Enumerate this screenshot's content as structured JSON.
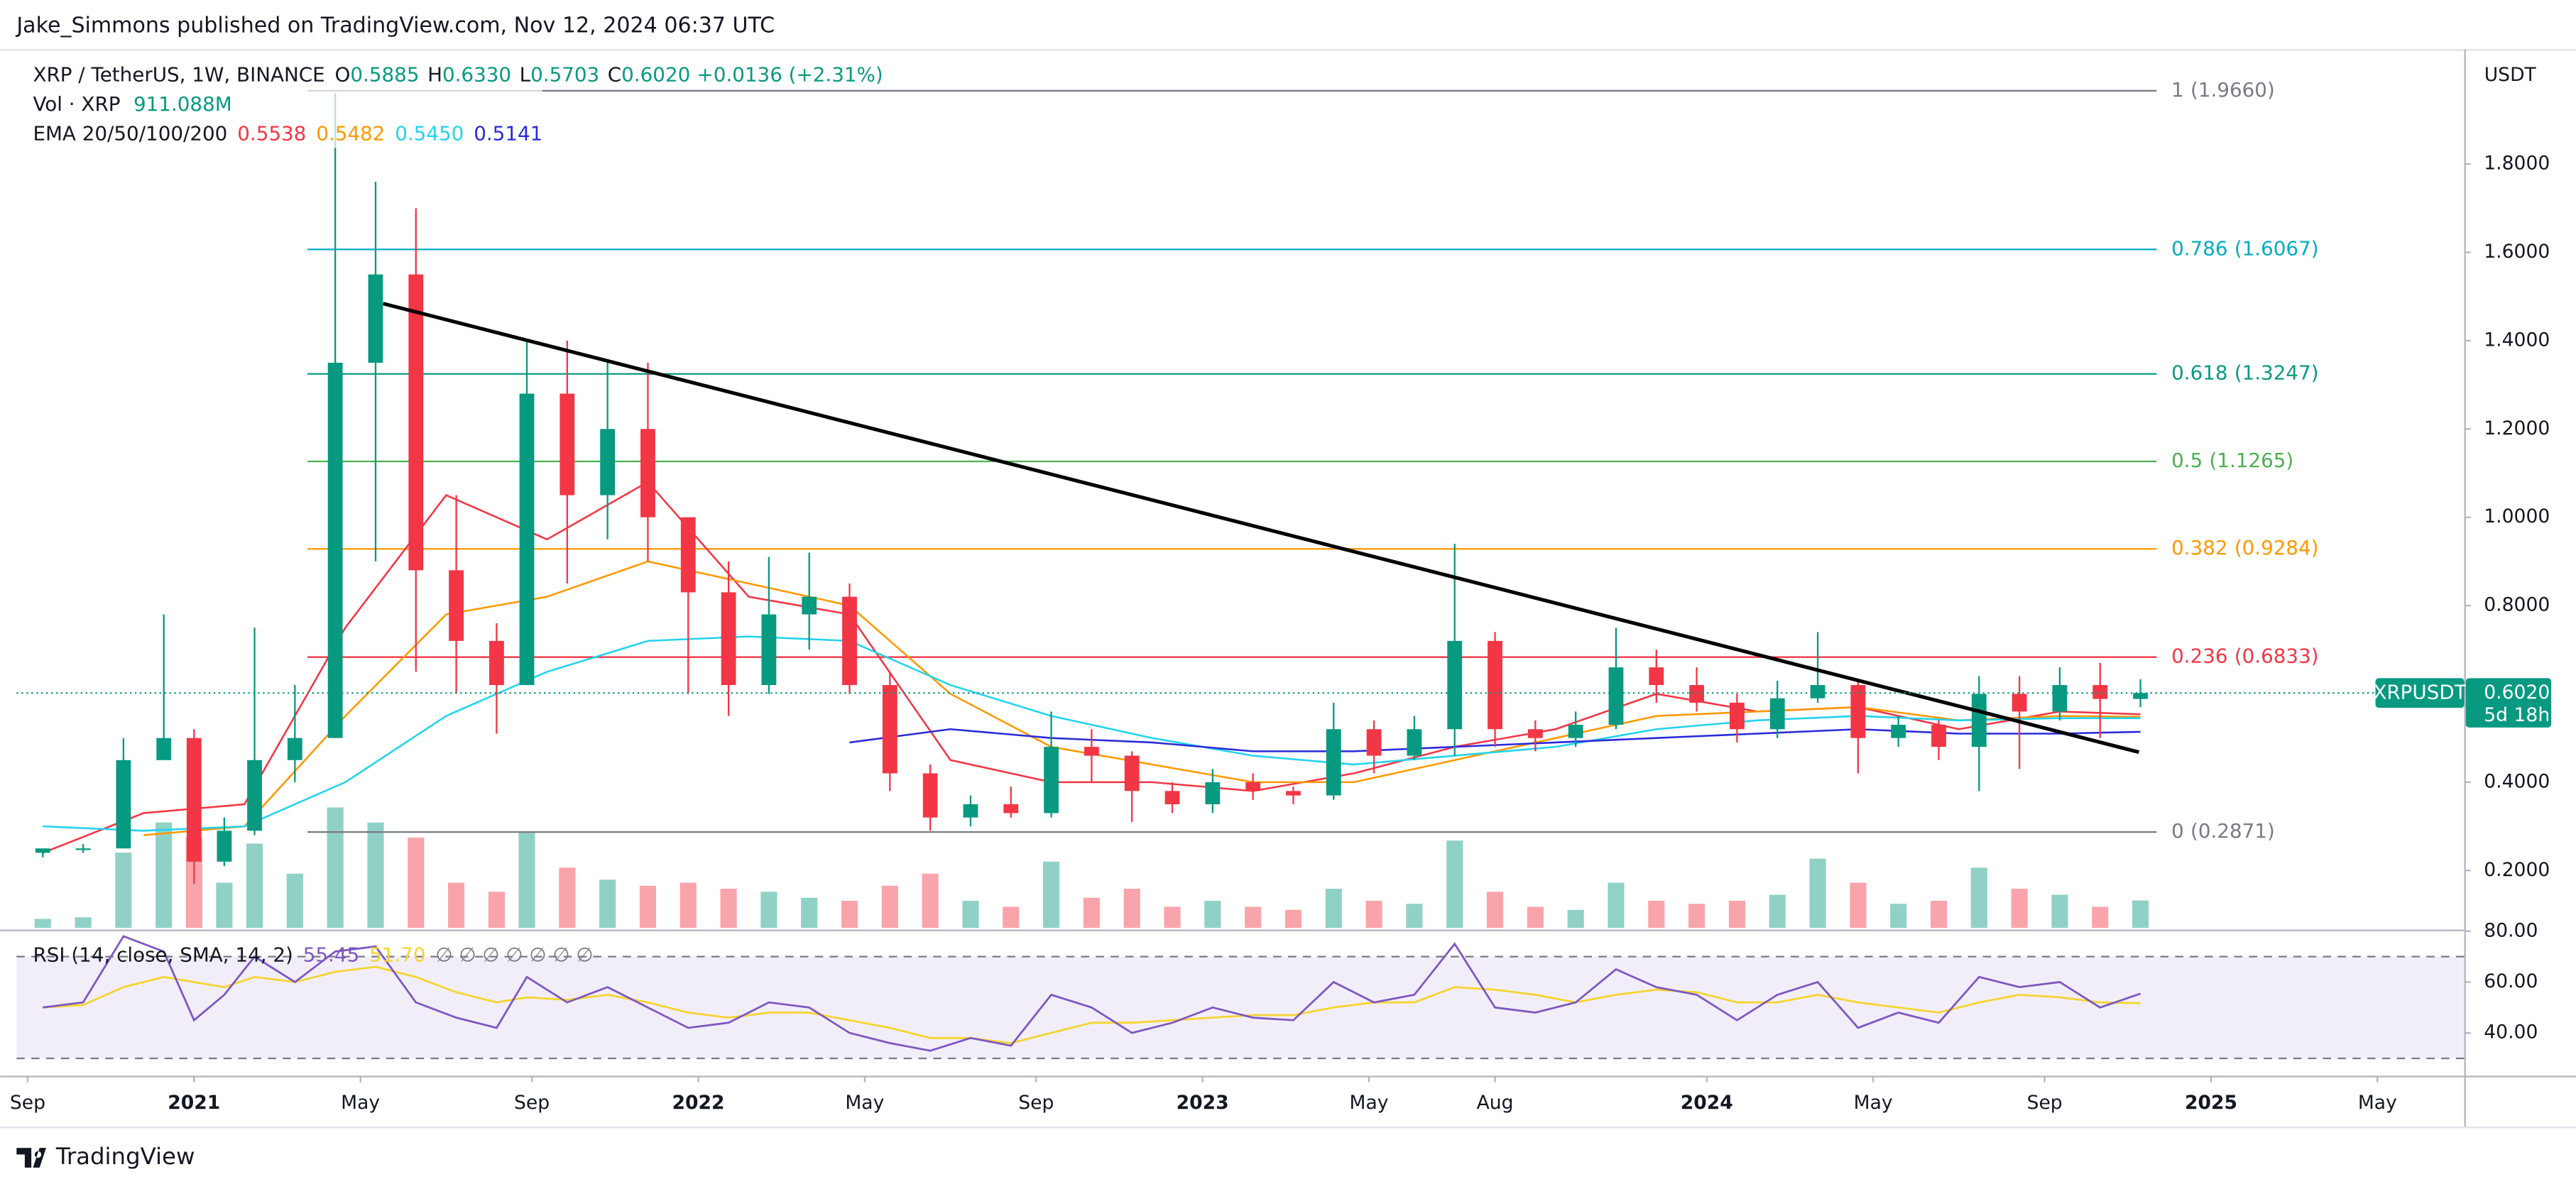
{
  "header": {
    "publisher": "Jake_Simmons published on TradingView.com, Nov 12, 2024 06:37 UTC"
  },
  "footer": {
    "brand": "TradingView"
  },
  "chart_data": {
    "type": "candlestick",
    "symbol": "XRP / TetherUS, 1W, BINANCE",
    "ohlc": [
      {
        "key": "O",
        "value": 0.5885
      },
      {
        "key": "H",
        "value": 0.633,
        "label": "0.6330"
      },
      {
        "key": "L",
        "value": 0.5703
      },
      {
        "key": "C",
        "value": 0.602,
        "label": "0.6020"
      }
    ],
    "change": "+0.0136 (+2.31%)",
    "up_color": "#089981",
    "down_color": "#f23645",
    "x": [
      2020.7,
      2020.78,
      2020.86,
      2020.94,
      2021.0,
      2021.06,
      2021.12,
      2021.2,
      2021.28,
      2021.36,
      2021.44,
      2021.52,
      2021.6,
      2021.66,
      2021.74,
      2021.82,
      2021.9,
      2021.98,
      2022.06,
      2022.14,
      2022.22,
      2022.3,
      2022.38,
      2022.46,
      2022.54,
      2022.62,
      2022.7,
      2022.78,
      2022.86,
      2022.94,
      2023.02,
      2023.1,
      2023.18,
      2023.26,
      2023.34,
      2023.42,
      2023.5,
      2023.58,
      2023.66,
      2023.74,
      2023.82,
      2023.9,
      2023.98,
      2024.06,
      2024.14,
      2024.22,
      2024.3,
      2024.38,
      2024.46,
      2024.54,
      2024.62,
      2024.7,
      2024.78,
      2024.86
    ],
    "open": [
      0.24,
      0.25,
      0.25,
      0.45,
      0.5,
      0.22,
      0.29,
      0.45,
      0.5,
      1.35,
      1.55,
      0.88,
      0.72,
      0.62,
      1.28,
      1.05,
      1.2,
      1.0,
      0.83,
      0.62,
      0.78,
      0.82,
      0.62,
      0.42,
      0.32,
      0.35,
      0.33,
      0.48,
      0.46,
      0.38,
      0.35,
      0.4,
      0.38,
      0.37,
      0.52,
      0.46,
      0.52,
      0.72,
      0.52,
      0.5,
      0.53,
      0.66,
      0.62,
      0.58,
      0.52,
      0.59,
      0.62,
      0.5,
      0.53,
      0.48,
      0.6,
      0.56,
      0.62,
      0.5885
    ],
    "high": [
      0.25,
      0.26,
      0.5,
      0.78,
      0.52,
      0.32,
      0.75,
      0.62,
      1.96,
      1.76,
      1.7,
      1.05,
      0.76,
      1.4,
      1.4,
      1.35,
      1.35,
      1.0,
      0.9,
      0.91,
      0.92,
      0.85,
      0.65,
      0.44,
      0.37,
      0.39,
      0.56,
      0.52,
      0.47,
      0.4,
      0.43,
      0.42,
      0.39,
      0.58,
      0.54,
      0.55,
      0.94,
      0.74,
      0.54,
      0.56,
      0.75,
      0.7,
      0.66,
      0.6,
      0.63,
      0.74,
      0.63,
      0.55,
      0.54,
      0.64,
      0.64,
      0.66,
      0.67,
      0.633
    ],
    "low": [
      0.23,
      0.24,
      0.25,
      0.45,
      0.17,
      0.21,
      0.28,
      0.4,
      0.5,
      0.9,
      0.65,
      0.6,
      0.51,
      0.62,
      0.85,
      0.95,
      0.9,
      0.6,
      0.55,
      0.6,
      0.7,
      0.6,
      0.38,
      0.29,
      0.3,
      0.32,
      0.32,
      0.4,
      0.31,
      0.33,
      0.33,
      0.36,
      0.35,
      0.36,
      0.42,
      0.45,
      0.46,
      0.48,
      0.47,
      0.48,
      0.52,
      0.58,
      0.56,
      0.49,
      0.5,
      0.58,
      0.42,
      0.48,
      0.45,
      0.38,
      0.43,
      0.54,
      0.5,
      0.5703
    ],
    "close": [
      0.25,
      0.25,
      0.45,
      0.5,
      0.22,
      0.29,
      0.45,
      0.5,
      1.35,
      1.55,
      0.88,
      0.72,
      0.62,
      1.28,
      1.05,
      1.2,
      1.0,
      0.83,
      0.62,
      0.78,
      0.82,
      0.62,
      0.42,
      0.32,
      0.35,
      0.33,
      0.48,
      0.46,
      0.38,
      0.35,
      0.4,
      0.38,
      0.37,
      0.52,
      0.46,
      0.52,
      0.72,
      0.52,
      0.5,
      0.53,
      0.66,
      0.62,
      0.58,
      0.52,
      0.59,
      0.62,
      0.5,
      0.53,
      0.48,
      0.6,
      0.56,
      0.62,
      0.5885,
      0.602
    ],
    "volume": {
      "name": "Vol · XRP",
      "legend_label": "911.088M",
      "ylim": [
        0,
        6000
      ],
      "values": [
        300,
        350,
        2500,
        3500,
        3000,
        1500,
        2800,
        1800,
        4000,
        3500,
        3000,
        1500,
        1200,
        3200,
        2000,
        1600,
        1400,
        1500,
        1300,
        1200,
        1000,
        900,
        1400,
        1800,
        900,
        700,
        2200,
        1000,
        1300,
        700,
        900,
        700,
        600,
        1300,
        900,
        800,
        2900,
        1200,
        700,
        600,
        1500,
        900,
        800,
        900,
        1100,
        2300,
        1500,
        800,
        900,
        2000,
        1300,
        1100,
        700,
        911.088
      ]
    },
    "ema": {
      "name": "EMA 20/50/100/200",
      "x": [
        2020.7,
        2020.9,
        2021.1,
        2021.3,
        2021.5,
        2021.7,
        2021.9,
        2022.1,
        2022.3,
        2022.5,
        2022.7,
        2022.9,
        2023.1,
        2023.3,
        2023.5,
        2023.7,
        2023.9,
        2024.1,
        2024.3,
        2024.5,
        2024.7,
        2024.86
      ],
      "series": [
        {
          "color": "#f23645",
          "legend_label": "0.5538",
          "values": [
            0.24,
            0.33,
            0.35,
            0.75,
            1.05,
            0.95,
            1.08,
            0.82,
            0.78,
            0.45,
            0.4,
            0.4,
            0.38,
            0.42,
            0.48,
            0.52,
            0.6,
            0.56,
            0.57,
            0.52,
            0.56,
            0.5538
          ]
        },
        {
          "color": "#ff9800",
          "legend_label": "0.5482",
          "values": [
            null,
            0.28,
            0.3,
            0.55,
            0.78,
            0.82,
            0.9,
            0.85,
            0.8,
            0.6,
            0.48,
            0.44,
            0.4,
            0.4,
            0.45,
            0.5,
            0.55,
            0.56,
            0.57,
            0.54,
            0.55,
            0.5482
          ]
        },
        {
          "color": "#22d3ee",
          "legend_label": "0.5450",
          "values": [
            0.3,
            0.29,
            0.3,
            0.4,
            0.55,
            0.65,
            0.72,
            0.73,
            0.72,
            0.62,
            0.55,
            0.5,
            0.46,
            0.44,
            0.46,
            0.48,
            0.52,
            0.54,
            0.55,
            0.54,
            0.545,
            0.545
          ]
        },
        {
          "color": "#2a2ad8",
          "legend_label": "0.5141",
          "values": [
            null,
            null,
            null,
            null,
            null,
            null,
            null,
            null,
            0.49,
            0.52,
            0.5,
            0.49,
            0.47,
            0.47,
            0.48,
            0.49,
            0.5,
            0.51,
            0.52,
            0.51,
            0.51,
            0.5141
          ]
        }
      ]
    },
    "xlim": [
      2020.648,
      2025.502
    ],
    "ylim": [
      0.07,
      2.06
    ],
    "xticks": [
      {
        "value": 2020.67,
        "label": "Sep"
      },
      {
        "value": 2021,
        "label": "2021"
      },
      {
        "value": 2021.33,
        "label": "May"
      },
      {
        "value": 2021.67,
        "label": "Sep"
      },
      {
        "value": 2022,
        "label": "2022"
      },
      {
        "value": 2022.33,
        "label": "May"
      },
      {
        "value": 2022.67,
        "label": "Sep"
      },
      {
        "value": 2023,
        "label": "2023"
      },
      {
        "value": 2023.33,
        "label": "May"
      },
      {
        "value": 2023.58,
        "label": "Aug"
      },
      {
        "value": 2024,
        "label": "2024"
      },
      {
        "value": 2024.33,
        "label": "May"
      },
      {
        "value": 2024.67,
        "label": "Sep"
      },
      {
        "value": 2025,
        "label": "2025"
      },
      {
        "value": 2025.33,
        "label": "May"
      }
    ],
    "yticks": [
      {
        "value": 0.2,
        "label": "0.2000"
      },
      {
        "value": 0.4,
        "label": "0.4000"
      },
      {
        "value": 0.6,
        "label": "0.6000"
      },
      {
        "value": 0.8,
        "label": "0.8000"
      },
      {
        "value": 1.0,
        "label": "1.0000"
      },
      {
        "value": 1.2,
        "label": "1.2000"
      },
      {
        "value": 1.4,
        "label": "1.4000"
      },
      {
        "value": 1.6,
        "label": "1.6000"
      },
      {
        "value": 1.8,
        "label": "1.8000"
      }
    ],
    "y_unit": "USDT",
    "current": {
      "symbol": "XRPUSDT",
      "price": 0.602,
      "price_label": "0.6020",
      "countdown": "5d 18h",
      "color": "#089981"
    },
    "fib_x": [
      2021.225,
      2024.892
    ],
    "fib": [
      {
        "ratio": 1,
        "price": 1.966,
        "price_label": "(1.9660)",
        "color": "#787b86"
      },
      {
        "ratio": 0.786,
        "price": 1.6067,
        "price_label": "(1.6067)",
        "color": "#00acc1"
      },
      {
        "ratio": 0.618,
        "price": 1.3247,
        "price_label": "(1.3247)",
        "color": "#089981"
      },
      {
        "ratio": 0.5,
        "price": 1.1265,
        "price_label": "(1.1265)",
        "color": "#4caf50"
      },
      {
        "ratio": 0.382,
        "price": 0.9284,
        "price_label": "(0.9284)",
        "color": "#ff9800"
      },
      {
        "ratio": 0.236,
        "price": 0.6833,
        "price_label": "(0.6833)",
        "color": "#f23645"
      },
      {
        "ratio": 0,
        "price": 0.2871,
        "price_label": "(0.2871)",
        "color": "#787b86"
      }
    ],
    "trendline": {
      "x": [
        2021.375,
        2024.857
      ],
      "values": [
        1.484,
        0.468
      ],
      "color": "#000000"
    },
    "rsi": {
      "name": "RSI (14, close, SMA, 14, 2)",
      "legend_label": "55.45",
      "sma_legend_label": "51.70",
      "icons": "∅ ∅ ∅ ∅ ∅ ∅ ∅",
      "color": "#7e57c2",
      "sma_color": "#f5d530",
      "ylim": [
        23.2,
        80
      ],
      "yticks": [
        {
          "value": 80,
          "label": "80.00"
        },
        {
          "value": 60,
          "label": "60.00"
        },
        {
          "value": 40,
          "label": "40.00"
        }
      ],
      "bands": [
        70,
        30
      ],
      "values": [
        50,
        52,
        78,
        72,
        45,
        55,
        70,
        60,
        72,
        74,
        52,
        46,
        42,
        62,
        52,
        58,
        50,
        42,
        44,
        52,
        50,
        40,
        36,
        33,
        38,
        35,
        55,
        50,
        40,
        44,
        50,
        46,
        45,
        60,
        52,
        55,
        75,
        50,
        48,
        52,
        65,
        58,
        55,
        45,
        55,
        60,
        42,
        48,
        44,
        62,
        58,
        60,
        50,
        55.45
      ],
      "sma": [
        50,
        51,
        58,
        62,
        60,
        58,
        62,
        60,
        64,
        66,
        62,
        56,
        52,
        54,
        53,
        55,
        52,
        48,
        46,
        48,
        48,
        45,
        42,
        38,
        38,
        36,
        40,
        44,
        44,
        45,
        46,
        47,
        47,
        50,
        52,
        52,
        58,
        57,
        55,
        52,
        55,
        57,
        56,
        52,
        52,
        55,
        52,
        50,
        48,
        52,
        55,
        54,
        52,
        51.7
      ]
    }
  }
}
